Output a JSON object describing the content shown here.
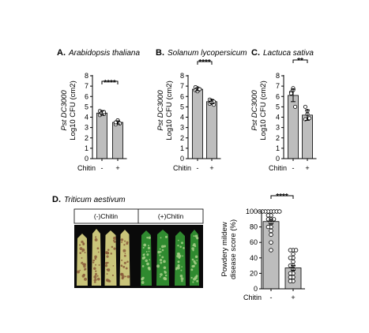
{
  "colors": {
    "bar_fill": "#bdbdbd",
    "axis": "#000000",
    "point_fill": "#ffffff",
    "leaf_minus_base": "#c9c47a",
    "leaf_minus_spots": "#8a5a3a",
    "leaf_plus_base": "#2f8a2f",
    "leaf_plus_spots": "#a8d08a",
    "photo_bg": "#0a0a0a"
  },
  "panels": [
    {
      "letter": "A.",
      "species": "Arabidopsis thaliana",
      "ylabel_line1": "Pst DC3000",
      "ylabel_line2": "Log10 CFU (cm2)",
      "xlabel": "Chitin",
      "categories": [
        "-",
        "+"
      ],
      "significance": "****"
    },
    {
      "letter": "B.",
      "species": "Solanum lycopersicum",
      "ylabel_line1": "Pst DC3000",
      "ylabel_line2": "Log10 CFU (cm2)",
      "xlabel": "Chitin",
      "categories": [
        "-",
        "+"
      ],
      "significance": "****"
    },
    {
      "letter": "C.",
      "species": "Lactuca sativa",
      "ylabel_line1": "Pst DC3000",
      "ylabel_line2": "Log10 CFU (cm2)",
      "xlabel": "Chitin",
      "categories": [
        "-",
        "+"
      ],
      "significance": "**"
    }
  ],
  "panel_d": {
    "letter": "D.",
    "species": "Triticum aestivum",
    "photo_headers": [
      "(-)Chitin",
      "(+)Chitin"
    ],
    "ylabel_line1": "Powdery mildew",
    "ylabel_line2": "disease score (%)",
    "xlabel": "Chitin",
    "categories": [
      "-",
      "+"
    ],
    "significance": "****"
  },
  "chart_data": [
    {
      "type": "bar",
      "title": "Arabidopsis thaliana",
      "ylabel": "Pst DC3000 Log10 CFU (cm2)",
      "xlabel": "Chitin",
      "categories": [
        "-",
        "+"
      ],
      "values": [
        4.4,
        3.5
      ],
      "errors": [
        0.2,
        0.15
      ],
      "points": [
        [
          4.2,
          4.5,
          4.3,
          4.6,
          4.4,
          4.5
        ],
        [
          3.3,
          3.6,
          3.4,
          3.5,
          3.7,
          3.4
        ]
      ],
      "ylim": [
        0,
        8
      ],
      "yticks": [
        0,
        1,
        2,
        3,
        4,
        5,
        6,
        7,
        8
      ]
    },
    {
      "type": "bar",
      "title": "Solanum lycopersicum",
      "ylabel": "Pst DC3000 Log10 CFU (cm2)",
      "xlabel": "Chitin",
      "categories": [
        "-",
        "+"
      ],
      "values": [
        6.7,
        5.5
      ],
      "errors": [
        0.15,
        0.2
      ],
      "points": [
        [
          6.6,
          6.8,
          6.7,
          6.9,
          6.5,
          6.7
        ],
        [
          5.3,
          5.6,
          5.5,
          5.7,
          5.4,
          5.2
        ]
      ],
      "ylim": [
        0,
        8
      ],
      "yticks": [
        0,
        1,
        2,
        3,
        4,
        5,
        6,
        7,
        8
      ]
    },
    {
      "type": "bar",
      "title": "Lactuca sativa",
      "ylabel": "Pst DC3000 Log10 CFU (cm2)",
      "xlabel": "Chitin",
      "categories": [
        "-",
        "+"
      ],
      "values": [
        6.1,
        4.2
      ],
      "errors": [
        0.6,
        0.5
      ],
      "points": [
        [
          6.4,
          6.8,
          5.0,
          6.3,
          6.6
        ],
        [
          5.0,
          4.3,
          3.9,
          3.8,
          4.6
        ]
      ],
      "ylim": [
        0,
        8
      ],
      "yticks": [
        0,
        1,
        2,
        3,
        4,
        5,
        6,
        7,
        8
      ]
    },
    {
      "type": "bar",
      "title": "Triticum aestivum",
      "ylabel": "Powdery mildew disease score (%)",
      "xlabel": "Chitin",
      "categories": [
        "-",
        "+"
      ],
      "values": [
        87,
        27
      ],
      "errors": [
        3,
        3
      ],
      "points": [
        [
          100,
          100,
          100,
          100,
          100,
          100,
          100,
          100,
          95,
          95,
          90,
          90,
          90,
          85,
          80,
          80,
          75,
          70,
          60,
          50
        ],
        [
          50,
          50,
          50,
          45,
          40,
          40,
          35,
          30,
          30,
          25,
          20,
          20,
          15,
          15,
          10,
          10
        ]
      ],
      "ylim": [
        0,
        100
      ],
      "yticks": [
        0,
        20,
        40,
        60,
        80,
        100
      ]
    }
  ]
}
